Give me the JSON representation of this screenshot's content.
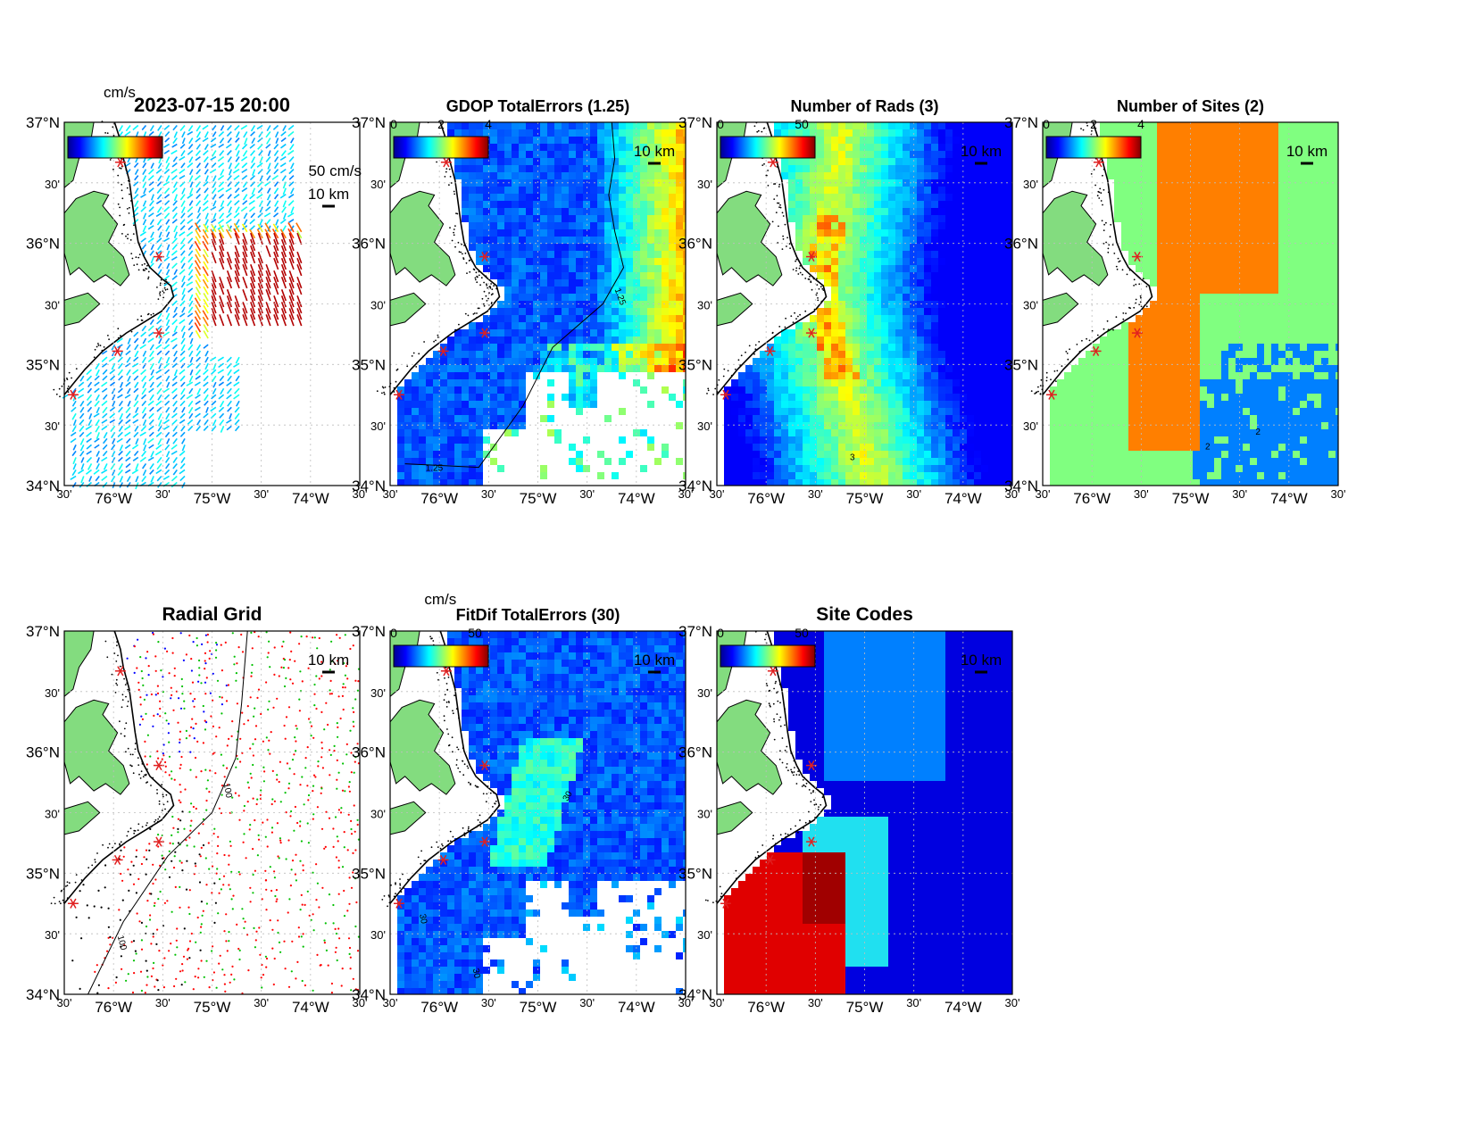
{
  "figure_title": "2023-07-15 20:00",
  "colors": {
    "land": "#83dc7f",
    "coast": "#000000",
    "site_marker": "#e02020",
    "grid_line": "#bdbdbd"
  },
  "colormap": "jet",
  "axes": {
    "lat_labels": [
      "37°N",
      "30'",
      "36°N",
      "30'",
      "35°N",
      "30'",
      "34°N"
    ],
    "lon_labels": [
      "30'",
      "76°W",
      "30'",
      "75°W",
      "30'",
      "74°W",
      "30'"
    ],
    "lat_range": [
      34,
      37
    ],
    "lon_range": [
      -76.5,
      -73.5
    ]
  },
  "scale_bar_label": "10 km",
  "panels": [
    {
      "id": "velocity",
      "title": "2023-07-15 20:00",
      "unit_label": "cm/s",
      "ref_vector_label": "50 cm/s",
      "colorbar_ticks": []
    },
    {
      "id": "gdop",
      "title": "GDOP TotalErrors (1.25)",
      "unit_label": "",
      "colorbar_ticks": [
        "0",
        "2",
        "4"
      ],
      "contour_label": "1.25"
    },
    {
      "id": "nrads",
      "title": "Number of Rads (3)",
      "unit_label": "",
      "colorbar_ticks": [
        "0",
        "50"
      ],
      "contour_label": "3"
    },
    {
      "id": "nsites",
      "title": "Number of Sites (2)",
      "unit_label": "",
      "colorbar_ticks": [
        "0",
        "2",
        "4"
      ],
      "contour_label": "2"
    },
    {
      "id": "radial",
      "title": "Radial Grid",
      "unit_label": "",
      "colorbar_ticks": [],
      "contour_label": "100"
    },
    {
      "id": "fitdif",
      "title": "FitDif TotalErrors (30)",
      "unit_label": "cm/s",
      "colorbar_ticks": [
        "0",
        "50"
      ],
      "contour_label": "30"
    },
    {
      "id": "sitecodes",
      "title": "Site Codes",
      "unit_label": "",
      "colorbar_ticks": [
        "0",
        "50"
      ]
    }
  ]
}
